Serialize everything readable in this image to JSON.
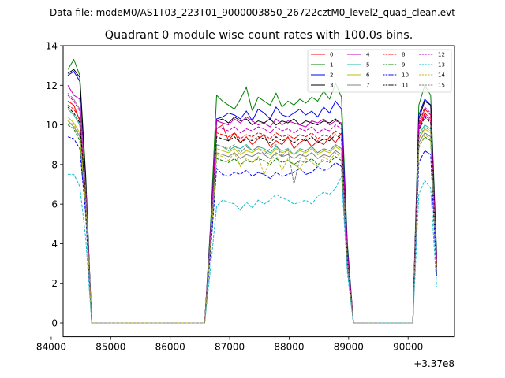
{
  "figure": {
    "suptitle": "Data file: modeM0/AS1T03_223T01_9000003850_26722cztM0_level2_quad_clean.evt"
  },
  "chart_data": {
    "type": "line",
    "title": "Quadrant 0 module wise count rates with 100.0s bins.",
    "xlabel": "",
    "ylabel": "",
    "x_offset_label": "+3.37e8",
    "xlim": [
      84200,
      90780
    ],
    "ylim": [
      -0.7,
      14
    ],
    "xticks": [
      84000,
      85000,
      86000,
      87000,
      88000,
      89000,
      90000
    ],
    "yticks": [
      0,
      2,
      4,
      6,
      8,
      10,
      12,
      14
    ],
    "grid": false,
    "legend": {
      "location": "upper right",
      "columns": 4
    },
    "x": [
      84280,
      84380,
      84480,
      84580,
      84680,
      84780,
      84880,
      84980,
      85080,
      85180,
      85280,
      85380,
      85480,
      85580,
      85680,
      85780,
      85880,
      85980,
      86080,
      86180,
      86280,
      86380,
      86480,
      86580,
      86680,
      86780,
      86880,
      86980,
      87080,
      87180,
      87280,
      87380,
      87480,
      87580,
      87680,
      87780,
      87880,
      87980,
      88080,
      88180,
      88280,
      88380,
      88480,
      88580,
      88680,
      88780,
      88880,
      88980,
      89080,
      89180,
      89280,
      89380,
      89480,
      89580,
      89680,
      89780,
      89880,
      89980,
      90080,
      90180,
      90280,
      90380,
      90480
    ],
    "series": [
      {
        "name": "0",
        "color": "#ff0000",
        "dash": "solid",
        "values": [
          11.2,
          11.0,
          10.2,
          6.5,
          0,
          0,
          0,
          0,
          0,
          0,
          0,
          0,
          0,
          0,
          0,
          0,
          0,
          0,
          0,
          0,
          0,
          0,
          0,
          0,
          4.5,
          9.8,
          10.0,
          9.2,
          9.6,
          9.1,
          9.4,
          9.0,
          9.3,
          9.5,
          8.9,
          9.2,
          9.0,
          9.4,
          8.8,
          9.1,
          9.3,
          8.9,
          9.2,
          9.0,
          9.4,
          9.1,
          9.6,
          3.5,
          0,
          0,
          0,
          0,
          0,
          0,
          0,
          0,
          0,
          0,
          0,
          10.0,
          10.8,
          10.5,
          3.0
        ]
      },
      {
        "name": "1",
        "color": "#008000",
        "dash": "solid",
        "values": [
          12.8,
          13.3,
          12.5,
          7.5,
          0,
          0,
          0,
          0,
          0,
          0,
          0,
          0,
          0,
          0,
          0,
          0,
          0,
          0,
          0,
          0,
          0,
          0,
          0,
          0,
          5.0,
          11.5,
          11.2,
          11.0,
          10.8,
          11.3,
          11.9,
          10.7,
          11.4,
          11.2,
          11.0,
          11.6,
          10.9,
          11.2,
          11.0,
          11.3,
          11.1,
          11.4,
          11.2,
          11.7,
          11.3,
          12.1,
          11.4,
          4.0,
          0,
          0,
          0,
          0,
          0,
          0,
          0,
          0,
          0,
          0,
          0,
          11.0,
          12.0,
          11.5,
          3.5
        ]
      },
      {
        "name": "2",
        "color": "#0000ff",
        "dash": "solid",
        "values": [
          12.5,
          12.7,
          12.2,
          7.2,
          0,
          0,
          0,
          0,
          0,
          0,
          0,
          0,
          0,
          0,
          0,
          0,
          0,
          0,
          0,
          0,
          0,
          0,
          0,
          0,
          4.8,
          10.3,
          10.4,
          10.6,
          10.5,
          10.3,
          10.7,
          10.2,
          10.8,
          10.6,
          10.3,
          10.9,
          10.5,
          10.4,
          10.6,
          10.8,
          10.5,
          10.7,
          10.4,
          10.9,
          10.6,
          11.2,
          10.8,
          3.8,
          0,
          0,
          0,
          0,
          0,
          0,
          0,
          0,
          0,
          0,
          0,
          10.5,
          11.3,
          11.0,
          3.3
        ]
      },
      {
        "name": "3",
        "color": "#000000",
        "dash": "solid",
        "values": [
          12.6,
          12.8,
          12.4,
          7.3,
          0,
          0,
          0,
          0,
          0,
          0,
          0,
          0,
          0,
          0,
          0,
          0,
          0,
          0,
          0,
          0,
          0,
          0,
          0,
          0,
          4.7,
          10.2,
          10.3,
          10.1,
          10.4,
          10.2,
          10.3,
          10.0,
          10.2,
          10.1,
          10.3,
          10.0,
          10.2,
          10.1,
          10.3,
          10.0,
          10.2,
          10.1,
          10.0,
          10.2,
          10.1,
          10.3,
          10.0,
          3.6,
          0,
          0,
          0,
          0,
          0,
          0,
          0,
          0,
          0,
          0,
          0,
          10.3,
          11.2,
          11.0,
          3.2
        ]
      },
      {
        "name": "4",
        "color": "#bf00bf",
        "dash": "solid",
        "values": [
          12.0,
          11.5,
          11.3,
          6.8,
          0,
          0,
          0,
          0,
          0,
          0,
          0,
          0,
          0,
          0,
          0,
          0,
          0,
          0,
          0,
          0,
          0,
          0,
          0,
          0,
          4.6,
          10.2,
          10.1,
          10.0,
          10.3,
          10.1,
          10.4,
          10.2,
          10.0,
          10.1,
          9.9,
          10.3,
          10.0,
          10.2,
          10.1,
          10.0,
          9.9,
          10.2,
          10.1,
          10.3,
          10.0,
          10.2,
          10.1,
          3.6,
          0,
          0,
          0,
          0,
          0,
          0,
          0,
          0,
          0,
          0,
          0,
          9.8,
          10.5,
          10.2,
          3.1
        ]
      },
      {
        "name": "5",
        "color": "#1abc9c",
        "dash": "solid",
        "values": [
          10.8,
          10.5,
          10.0,
          6.2,
          0,
          0,
          0,
          0,
          0,
          0,
          0,
          0,
          0,
          0,
          0,
          0,
          0,
          0,
          0,
          0,
          0,
          0,
          0,
          0,
          4.2,
          9.0,
          8.9,
          8.7,
          8.9,
          8.8,
          9.0,
          8.7,
          8.9,
          8.8,
          8.6,
          8.9,
          8.7,
          8.8,
          8.5,
          8.8,
          8.7,
          8.9,
          8.6,
          8.8,
          8.7,
          9.0,
          8.8,
          3.2,
          0,
          0,
          0,
          0,
          0,
          0,
          0,
          0,
          0,
          0,
          0,
          9.5,
          10.0,
          9.8,
          2.8
        ]
      },
      {
        "name": "6",
        "color": "#bfbf00",
        "dash": "solid",
        "values": [
          10.4,
          10.1,
          9.6,
          6.0,
          0,
          0,
          0,
          0,
          0,
          0,
          0,
          0,
          0,
          0,
          0,
          0,
          0,
          0,
          0,
          0,
          0,
          0,
          0,
          0,
          4.0,
          8.8,
          8.7,
          8.6,
          8.8,
          8.5,
          8.7,
          8.6,
          8.8,
          8.7,
          8.5,
          8.8,
          8.6,
          8.7,
          8.5,
          8.7,
          8.6,
          8.8,
          8.5,
          8.7,
          8.6,
          8.9,
          8.7,
          3.1,
          0,
          0,
          0,
          0,
          0,
          0,
          0,
          0,
          0,
          0,
          0,
          9.3,
          9.8,
          9.6,
          2.7
        ]
      },
      {
        "name": "7",
        "color": "#808080",
        "dash": "solid",
        "values": [
          10.2,
          9.9,
          9.4,
          5.9,
          0,
          0,
          0,
          0,
          0,
          0,
          0,
          0,
          0,
          0,
          0,
          0,
          0,
          0,
          0,
          0,
          0,
          0,
          0,
          0,
          3.9,
          8.6,
          8.5,
          8.4,
          8.6,
          8.3,
          8.5,
          8.4,
          8.6,
          8.5,
          8.3,
          8.6,
          8.4,
          8.5,
          8.3,
          8.5,
          8.4,
          8.6,
          8.3,
          8.5,
          8.4,
          8.7,
          8.5,
          3.0,
          0,
          0,
          0,
          0,
          0,
          0,
          0,
          0,
          0,
          0,
          0,
          9.1,
          9.6,
          9.4,
          2.6
        ]
      },
      {
        "name": "8",
        "color": "#ff0000",
        "dash": "dashed",
        "values": [
          11.0,
          10.8,
          10.3,
          6.5,
          0,
          0,
          0,
          0,
          0,
          0,
          0,
          0,
          0,
          0,
          0,
          0,
          0,
          0,
          0,
          0,
          0,
          0,
          0,
          0,
          4.4,
          9.6,
          9.5,
          9.4,
          9.6,
          9.3,
          9.5,
          9.4,
          9.6,
          9.5,
          9.3,
          9.6,
          9.4,
          9.5,
          9.3,
          9.5,
          9.4,
          9.6,
          9.3,
          9.5,
          9.4,
          9.7,
          9.5,
          3.4,
          0,
          0,
          0,
          0,
          0,
          0,
          0,
          0,
          0,
          0,
          0,
          9.9,
          10.6,
          10.3,
          2.9
        ]
      },
      {
        "name": "9",
        "color": "#008000",
        "dash": "dashed",
        "values": [
          10.0,
          9.8,
          9.2,
          5.8,
          0,
          0,
          0,
          0,
          0,
          0,
          0,
          0,
          0,
          0,
          0,
          0,
          0,
          0,
          0,
          0,
          0,
          0,
          0,
          0,
          3.8,
          8.3,
          8.2,
          8.1,
          8.3,
          8.0,
          8.2,
          8.1,
          8.3,
          8.2,
          8.0,
          8.3,
          8.1,
          8.2,
          8.0,
          8.2,
          8.1,
          8.3,
          8.0,
          8.2,
          8.1,
          8.4,
          8.2,
          2.9,
          0,
          0,
          0,
          0,
          0,
          0,
          0,
          0,
          0,
          0,
          0,
          8.9,
          9.4,
          9.2,
          2.5
        ]
      },
      {
        "name": "10",
        "color": "#0000ff",
        "dash": "dashed",
        "values": [
          9.4,
          9.3,
          8.8,
          5.5,
          0,
          0,
          0,
          0,
          0,
          0,
          0,
          0,
          0,
          0,
          0,
          0,
          0,
          0,
          0,
          0,
          0,
          0,
          0,
          0,
          3.6,
          7.8,
          7.5,
          7.4,
          7.6,
          7.5,
          7.7,
          7.4,
          7.6,
          7.5,
          7.3,
          7.6,
          7.4,
          7.5,
          7.6,
          7.8,
          7.5,
          7.6,
          7.9,
          7.7,
          7.8,
          8.1,
          7.9,
          2.8,
          0,
          0,
          0,
          0,
          0,
          0,
          0,
          0,
          0,
          0,
          0,
          8.1,
          8.7,
          8.5,
          2.3
        ]
      },
      {
        "name": "11",
        "color": "#000000",
        "dash": "dashed",
        "values": [
          10.9,
          10.6,
          10.1,
          6.4,
          0,
          0,
          0,
          0,
          0,
          0,
          0,
          0,
          0,
          0,
          0,
          0,
          0,
          0,
          0,
          0,
          0,
          0,
          0,
          0,
          4.3,
          9.4,
          9.3,
          9.2,
          9.4,
          9.1,
          9.3,
          9.2,
          9.4,
          9.3,
          9.1,
          9.4,
          9.2,
          9.3,
          9.1,
          9.3,
          9.2,
          9.4,
          9.1,
          9.3,
          9.2,
          9.5,
          9.3,
          3.3,
          0,
          0,
          0,
          0,
          0,
          0,
          0,
          0,
          0,
          0,
          0,
          9.7,
          10.4,
          10.1,
          2.8
        ]
      },
      {
        "name": "12",
        "color": "#bf00bf",
        "dash": "dashed",
        "values": [
          11.5,
          11.2,
          10.7,
          6.7,
          0,
          0,
          0,
          0,
          0,
          0,
          0,
          0,
          0,
          0,
          0,
          0,
          0,
          0,
          0,
          0,
          0,
          0,
          0,
          0,
          4.5,
          9.9,
          9.8,
          9.7,
          9.9,
          9.6,
          9.8,
          9.7,
          9.9,
          9.8,
          9.6,
          9.9,
          9.7,
          9.8,
          9.6,
          9.8,
          9.7,
          9.9,
          9.6,
          9.8,
          9.7,
          10.0,
          9.8,
          3.5,
          0,
          0,
          0,
          0,
          0,
          0,
          0,
          0,
          0,
          0,
          0,
          10.1,
          10.9,
          10.6,
          3.0
        ]
      },
      {
        "name": "13",
        "color": "#17becf",
        "dash": "dashed",
        "values": [
          7.5,
          7.5,
          6.9,
          4.3,
          0,
          0,
          0,
          0,
          0,
          0,
          0,
          0,
          0,
          0,
          0,
          0,
          0,
          0,
          0,
          0,
          0,
          0,
          0,
          0,
          2.8,
          5.9,
          6.2,
          6.1,
          6.0,
          5.7,
          6.1,
          5.8,
          6.2,
          6.0,
          6.2,
          6.5,
          6.3,
          6.2,
          6.0,
          6.1,
          6.2,
          6.0,
          6.4,
          6.6,
          6.5,
          6.8,
          7.4,
          2.5,
          0,
          0,
          0,
          0,
          0,
          0,
          0,
          0,
          0,
          0,
          0,
          6.5,
          7.2,
          6.8,
          1.8
        ]
      },
      {
        "name": "14",
        "color": "#bcbd22",
        "dash": "dashed",
        "values": [
          10.2,
          10.0,
          9.5,
          6.0,
          0,
          0,
          0,
          0,
          0,
          0,
          0,
          0,
          0,
          0,
          0,
          0,
          0,
          0,
          0,
          0,
          0,
          0,
          0,
          0,
          3.9,
          8.5,
          8.4,
          8.2,
          8.6,
          7.9,
          8.3,
          8.1,
          8.4,
          7.5,
          8.2,
          8.5,
          7.7,
          8.3,
          8.0,
          7.8,
          8.3,
          8.1,
          7.9,
          8.4,
          8.2,
          8.6,
          8.3,
          3.0,
          0,
          0,
          0,
          0,
          0,
          0,
          0,
          0,
          0,
          0,
          0,
          8.8,
          9.5,
          9.3,
          2.6
        ]
      },
      {
        "name": "15",
        "color": "#7f7f7f",
        "dash": "dashed",
        "values": [
          11.6,
          11.3,
          10.8,
          6.8,
          0,
          0,
          0,
          0,
          0,
          0,
          0,
          0,
          0,
          0,
          0,
          0,
          0,
          0,
          0,
          0,
          0,
          0,
          0,
          0,
          4.5,
          9.0,
          8.9,
          8.8,
          9.0,
          8.6,
          8.9,
          8.7,
          8.9,
          8.5,
          8.8,
          9.0,
          8.4,
          8.8,
          7.0,
          8.3,
          8.7,
          8.9,
          8.6,
          8.8,
          8.7,
          9.0,
          8.8,
          3.2,
          0,
          0,
          0,
          0,
          0,
          0,
          0,
          0,
          0,
          0,
          0,
          9.3,
          9.9,
          9.7,
          2.7
        ]
      }
    ]
  }
}
